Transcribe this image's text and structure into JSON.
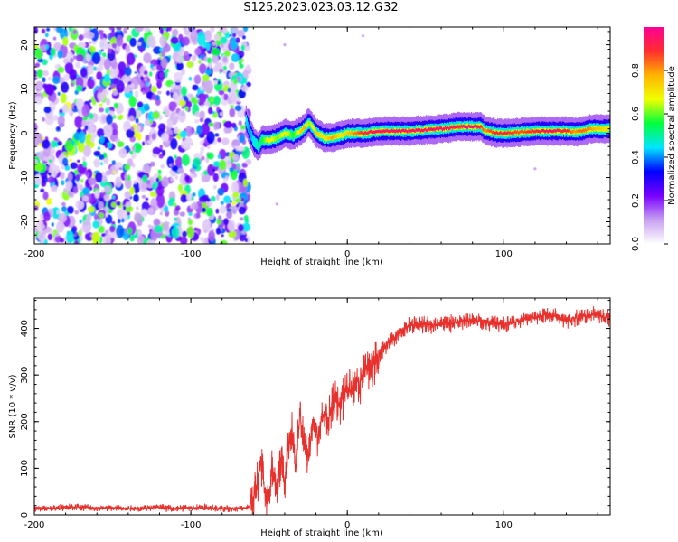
{
  "title": "S125.2023.023.03.12.G32",
  "chart_data": [
    {
      "type": "heatmap",
      "title": "S125.2023.023.03.12.G32",
      "xlabel": "Height of straight line (km)",
      "ylabel": "Frequency (Hz)",
      "xlim": [
        -200,
        168
      ],
      "ylim": [
        -25,
        24
      ],
      "x_ticks": [
        -200,
        -100,
        0,
        100
      ],
      "y_ticks": [
        -20,
        -10,
        0,
        10,
        20
      ],
      "x_tick_labels": [
        "-200",
        "-100",
        "0",
        "100"
      ],
      "y_tick_labels": [
        "-20",
        "-10",
        "0",
        "10",
        "20"
      ],
      "noise_region_x": [
        -200,
        -63
      ],
      "ridge": {
        "x": [
          -65,
          -63,
          -60,
          -57,
          -55,
          -50,
          -45,
          -40,
          -35,
          -30,
          -27,
          -25,
          -22,
          -20,
          -15,
          -10,
          -5,
          0,
          10,
          20,
          30,
          40,
          50,
          60,
          65,
          70,
          75,
          80,
          85,
          88,
          90,
          95,
          100,
          110,
          120,
          130,
          140,
          145,
          150,
          155,
          160,
          168
        ],
        "frequency": [
          3,
          0.5,
          -2,
          -3,
          -1.5,
          -1.5,
          -1,
          0,
          -0.5,
          0.5,
          1.5,
          2.5,
          1,
          0,
          -1,
          -1,
          -0.5,
          0,
          0,
          0.5,
          0.5,
          0.5,
          0.8,
          1,
          1.2,
          1.5,
          1.5,
          1.5,
          1.5,
          0.5,
          0.5,
          0,
          0,
          0.2,
          0.5,
          0.5,
          0.5,
          0.3,
          0.5,
          1,
          1,
          1
        ],
        "amplitude": [
          0.45,
          0.4,
          0.45,
          0.5,
          0.55,
          0.7,
          0.6,
          0.7,
          0.55,
          0.75,
          0.8,
          0.6,
          0.7,
          0.75,
          0.7,
          0.8,
          0.7,
          0.75,
          0.9,
          0.95,
          0.95,
          0.95,
          0.95,
          0.95,
          0.95,
          0.9,
          0.95,
          0.95,
          0.9,
          0.8,
          0.85,
          0.9,
          0.9,
          0.85,
          0.9,
          0.95,
          0.9,
          0.8,
          0.85,
          0.8,
          0.75,
          0.7
        ]
      },
      "colorbar": {
        "label": "Normalized spectral amplitude",
        "range": [
          0,
          1
        ],
        "ticks": [
          0.0,
          0.2,
          0.4,
          0.6,
          0.8
        ],
        "tick_labels": [
          "0.0",
          "0.2",
          "0.4",
          "0.6",
          "0.8"
        ],
        "colors": [
          "#ffffff",
          "#c8a0f0",
          "#7800ff",
          "#0000ff",
          "#00e6ff",
          "#00ff3c",
          "#f0ff00",
          "#ffb400",
          "#ff2d2d",
          "#ff0096"
        ]
      }
    },
    {
      "type": "line",
      "xlabel": "Height of straight line (km)",
      "ylabel": "SNR (10 * v/v)",
      "xlim": [
        -200,
        168
      ],
      "ylim": [
        0,
        465
      ],
      "x_ticks": [
        -200,
        -100,
        0,
        100
      ],
      "y_ticks": [
        0,
        100,
        200,
        300,
        400
      ],
      "x_tick_labels": [
        "-200",
        "-100",
        "0",
        "100"
      ],
      "y_tick_labels": [
        "0",
        "100",
        "200",
        "300",
        "400"
      ],
      "color": "#e8302c",
      "series": [
        {
          "x": [
            -200,
            -190,
            -180,
            -170,
            -160,
            -150,
            -140,
            -130,
            -120,
            -110,
            -100,
            -90,
            -80,
            -70,
            -65,
            -62,
            -58,
            -55,
            -52,
            -50,
            -48,
            -45,
            -42,
            -40,
            -38,
            -35,
            -33,
            -30,
            -28,
            -25,
            -22,
            -20,
            -18,
            -15,
            -12,
            -10,
            -8,
            -5,
            -2,
            0,
            3,
            6,
            8,
            10,
            12,
            15,
            18,
            20,
            22,
            25,
            28,
            30,
            35,
            40,
            45,
            50,
            60,
            70,
            80,
            90,
            100,
            110,
            120,
            130,
            140,
            150,
            160,
            168
          ],
          "values": [
            15,
            14,
            16,
            17,
            14,
            15,
            13,
            15,
            16,
            14,
            15,
            15,
            13,
            14,
            15,
            18,
            60,
            120,
            30,
            40,
            100,
            60,
            130,
            55,
            150,
            180,
            100,
            220,
            150,
            130,
            200,
            180,
            175,
            220,
            200,
            240,
            250,
            230,
            260,
            270,
            260,
            290,
            280,
            300,
            320,
            310,
            330,
            340,
            350,
            365,
            375,
            380,
            395,
            405,
            410,
            408,
            410,
            412,
            418,
            415,
            405,
            418,
            425,
            428,
            420,
            425,
            430,
            422
          ]
        }
      ]
    }
  ]
}
